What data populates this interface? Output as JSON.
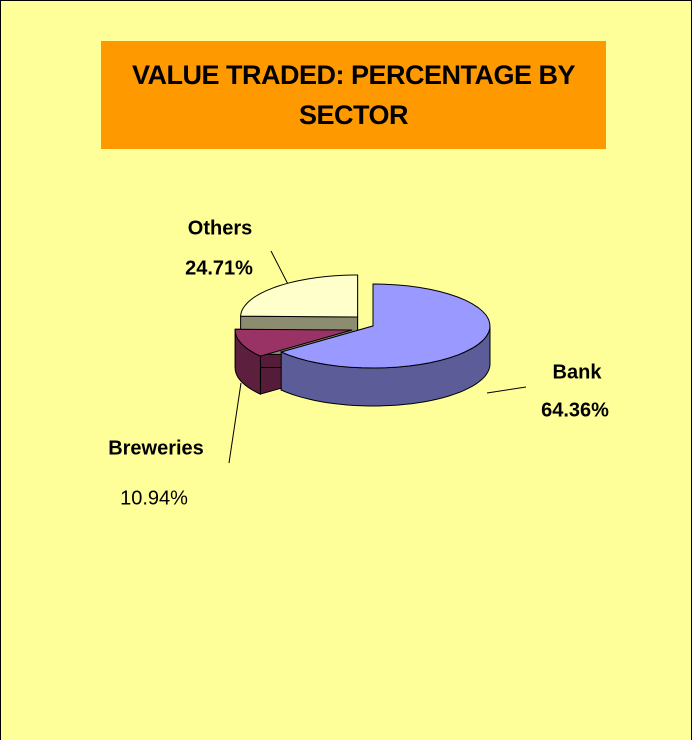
{
  "chart_data": {
    "type": "pie3d",
    "title": "VALUE TRADED: PERCENTAGE BY SECTOR",
    "categories": [
      "Bank",
      "Breweries",
      "Others"
    ],
    "values": [
      64.36,
      10.94,
      24.71
    ],
    "value_labels": [
      "64.36%",
      "10.94%",
      "24.71%"
    ],
    "colors": [
      "#9999FF",
      "#993366",
      "#FFFFCC"
    ],
    "exploded": [
      false,
      true,
      true
    ]
  }
}
